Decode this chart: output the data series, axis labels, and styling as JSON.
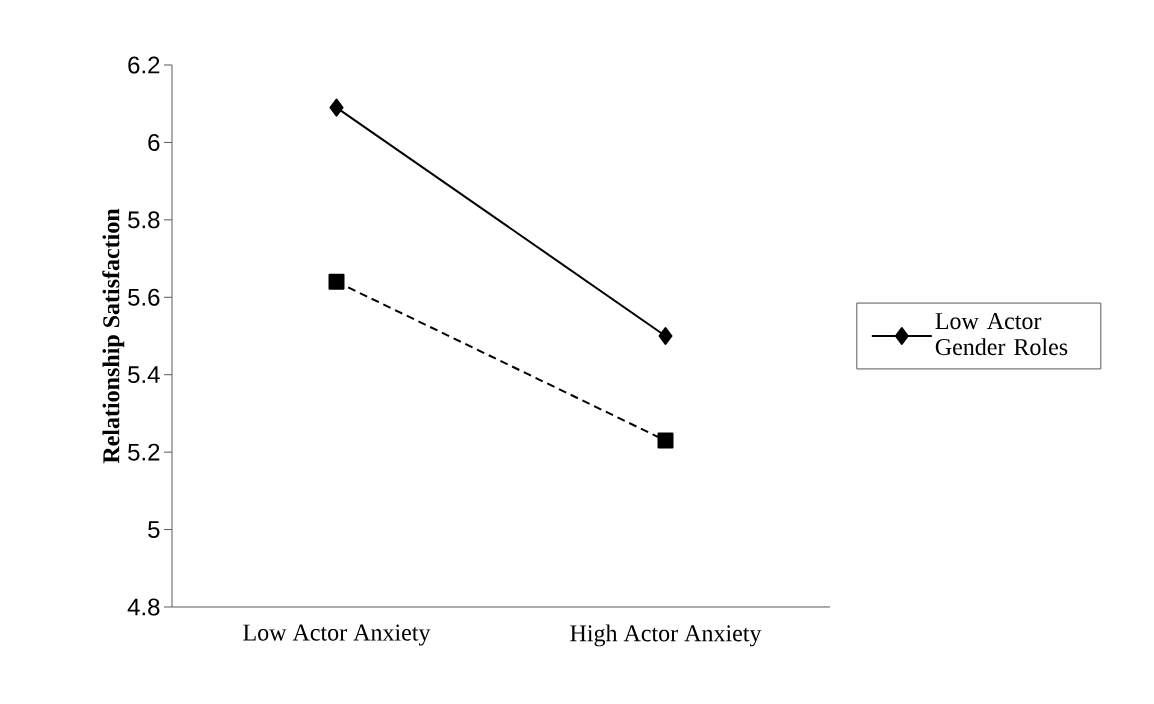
{
  "chart_data": {
    "type": "line",
    "ylabel": "Relationship Satisfaction",
    "categories": [
      "Low Actor Anxiety",
      "High Actor Anxiety"
    ],
    "series": [
      {
        "name": "Low Actor Gender Roles",
        "color": "#000000",
        "values": [
          6.09,
          5.5
        ],
        "marker": "diamond",
        "line_style": "solid"
      },
      {
        "color": "#000000",
        "values": [
          5.64,
          5.23
        ],
        "marker": "square",
        "line_style": "dashed"
      }
    ],
    "ylim": [
      4.8,
      6.2
    ],
    "yticks": [
      4.8,
      5,
      5.2,
      5.4,
      5.6,
      5.8,
      6,
      6.2
    ],
    "grid": false,
    "legend": "right"
  }
}
